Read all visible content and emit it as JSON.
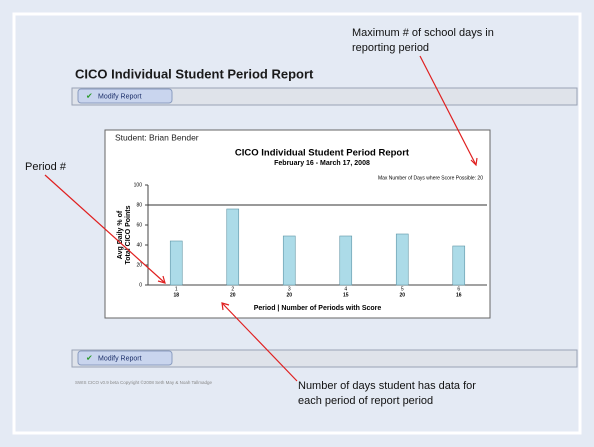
{
  "page_title": "CICO Individual Student Period Report",
  "buttons": [
    "Modify Report",
    "Modify Report"
  ],
  "footer": "SWIS CICO v0.9 beta Copyright ©2008 Seth May & Noah Tallmadge",
  "annotations": {
    "max_days": [
      "Maximum # of school days in",
      "reporting period"
    ],
    "period": [
      "Period #"
    ],
    "days_data": [
      "Number of days student has data for",
      "each period of report period"
    ]
  },
  "chart_data": {
    "type": "bar",
    "student": "Student: Brian Bender",
    "title": "CICO Individual Student Period Report",
    "subtitle": "February 16 - March 17, 2008",
    "note": "Max Number of Days where Score Possible: 20",
    "ylabel": [
      "Avg Daily % of",
      "Total CICO Points"
    ],
    "xlabel": "Period | Number of Periods with Score",
    "categories": [
      "1",
      "2",
      "3",
      "4",
      "5",
      "6"
    ],
    "counts": [
      18,
      20,
      20,
      15,
      20,
      16
    ],
    "values": [
      44,
      76,
      49,
      49,
      51,
      39
    ],
    "color": "#acdbe8",
    "ylim": [
      0,
      100
    ],
    "yticks": [
      0,
      20,
      40,
      60,
      80,
      100
    ],
    "reference_line": 80
  }
}
